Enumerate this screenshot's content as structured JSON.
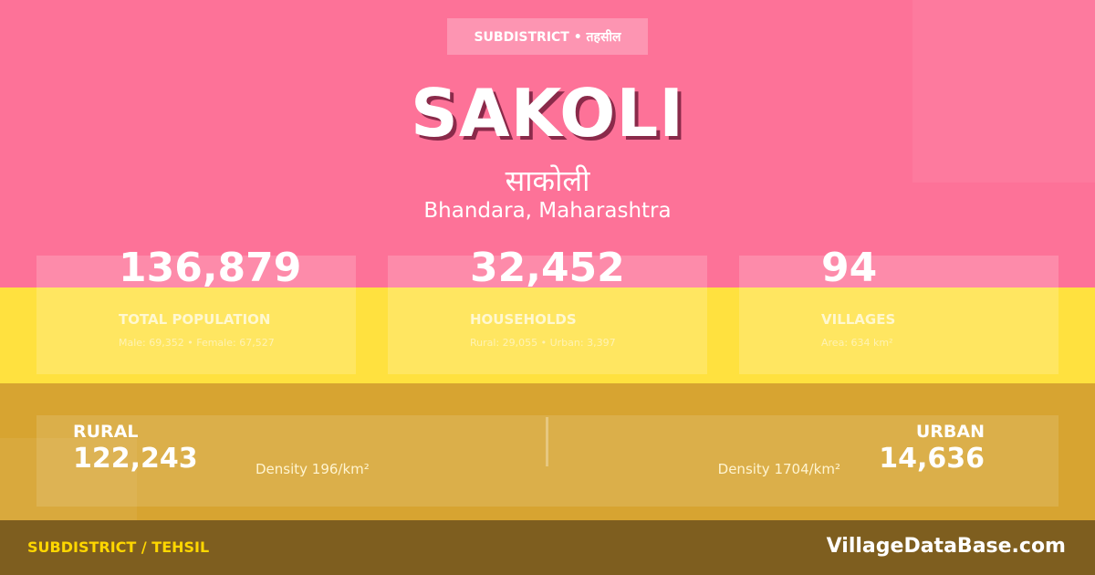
{
  "colors": {
    "pink": "#fd7298",
    "yellow": "#ffe13f",
    "mustard": "#d7a431",
    "footer": "#7e5e1f",
    "footer_accent": "#ffd700"
  },
  "badge": "SUBDISTRICT • तहसील",
  "title": "SAKOLI",
  "native_name": "साकोली",
  "location": "Bhandara, Maharashtra",
  "stats": [
    {
      "value": "136,879",
      "label": "TOTAL POPULATION",
      "detail": "Male: 69,352 • Female: 67,527"
    },
    {
      "value": "32,452",
      "label": "HOUSEHOLDS",
      "detail": "Rural: 29,055 • Urban: 3,397"
    },
    {
      "value": "94",
      "label": "VILLAGES",
      "detail": "Area: 634 km²"
    }
  ],
  "rural": {
    "label": "RURAL",
    "value": "122,243",
    "density": "Density 196/km²"
  },
  "urban": {
    "label": "URBAN",
    "value": "14,636",
    "density": "Density 1704/km²"
  },
  "footer": {
    "left": "SUBDISTRICT / TEHSIL",
    "right": "VillageDataBase.com"
  }
}
